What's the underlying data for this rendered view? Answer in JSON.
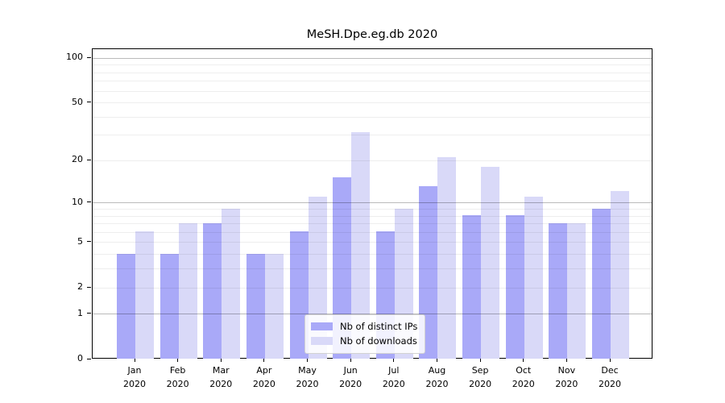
{
  "chart_data": {
    "type": "bar",
    "title": "MeSH.Dpe.eg.db 2020",
    "categories": [
      "Jan\n2020",
      "Feb\n2020",
      "Mar\n2020",
      "Apr\n2020",
      "May\n2020",
      "Jun\n2020",
      "Jul\n2020",
      "Aug\n2020",
      "Sep\n2020",
      "Oct\n2020",
      "Nov\n2020",
      "Dec\n2020"
    ],
    "series": [
      {
        "name": "Nb of distinct IPs",
        "color": "#a9a9f8",
        "values": [
          4,
          4,
          7,
          4,
          6,
          15,
          6,
          13,
          8,
          8,
          7,
          9
        ]
      },
      {
        "name": "Nb of downloads",
        "color": "#d9d9f8",
        "values": [
          6,
          7,
          9,
          4,
          11,
          31,
          9,
          21,
          18,
          11,
          7,
          12
        ]
      }
    ],
    "y_axis": {
      "scale": "log1p",
      "min": 0,
      "max": 115,
      "ticks": [
        0,
        1,
        2,
        5,
        10,
        20,
        50,
        100
      ],
      "major_gridlines": [
        1,
        10,
        100
      ],
      "minor_gridlines": [
        2,
        3,
        4,
        5,
        6,
        7,
        8,
        9,
        20,
        30,
        40,
        50,
        60,
        70,
        80,
        90
      ]
    },
    "legend": {
      "position": "lower center"
    },
    "colors": {
      "background": "#ffffff",
      "spine": "#000000",
      "text": "#000000"
    }
  }
}
